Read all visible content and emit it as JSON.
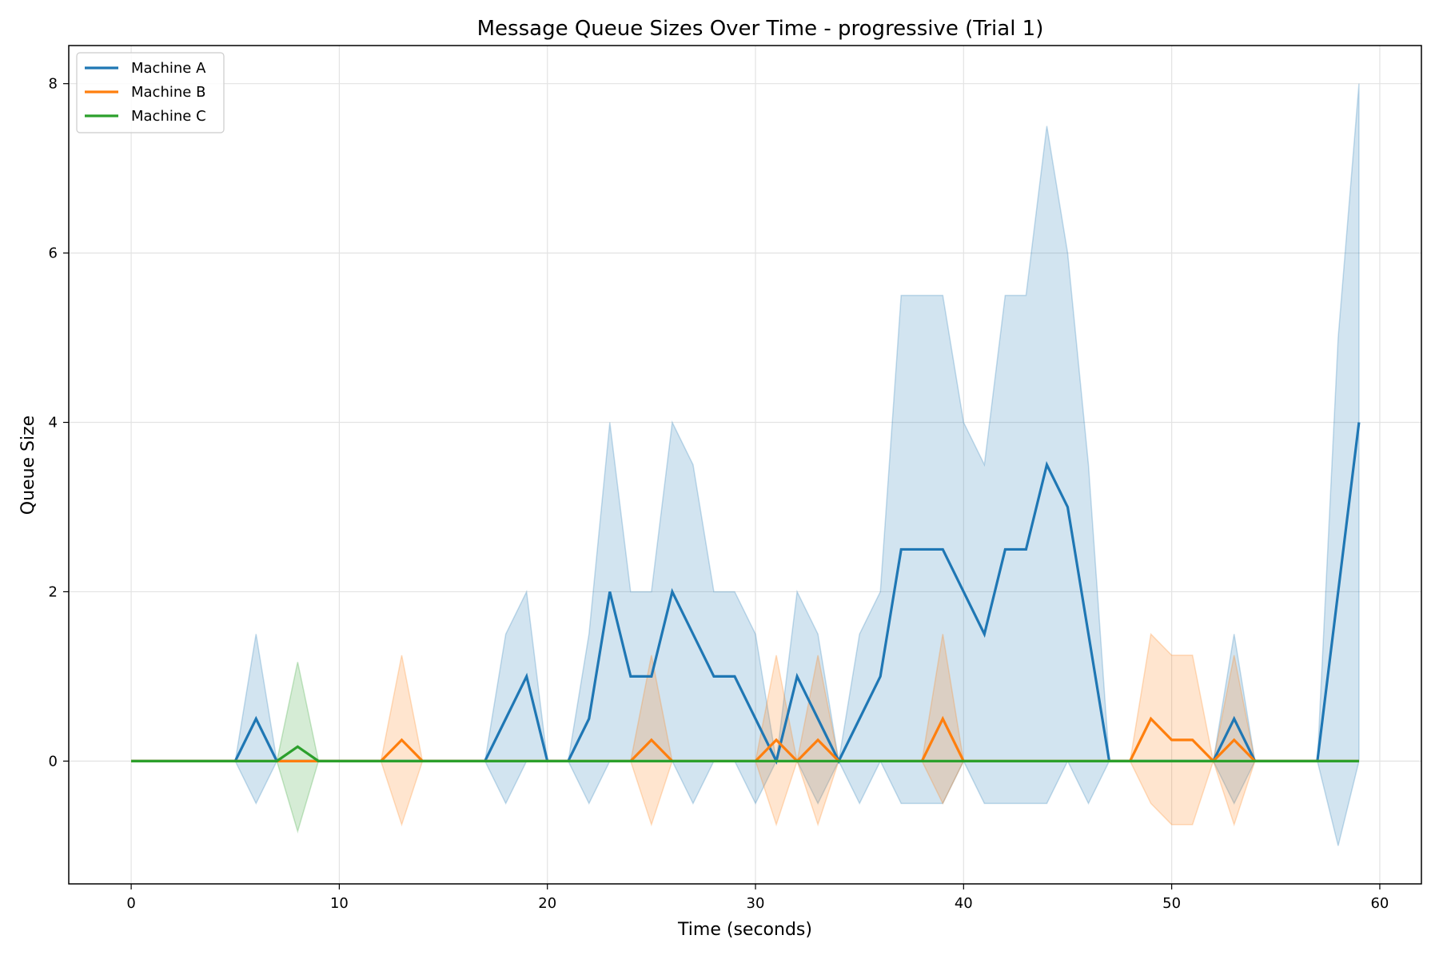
{
  "chart_data": {
    "type": "line",
    "title": "Message Queue Sizes Over Time - progressive (Trial 1)",
    "xlabel": "Time (seconds)",
    "ylabel": "Queue Size",
    "xlim": [
      -3,
      62
    ],
    "ylim": [
      -1.45,
      8.45
    ],
    "xticks": [
      0,
      10,
      20,
      30,
      40,
      50,
      60
    ],
    "yticks": [
      0,
      2,
      4,
      6,
      8
    ],
    "grid": true,
    "legend_position": "top-left",
    "x": [
      0,
      1,
      2,
      3,
      4,
      5,
      6,
      7,
      8,
      9,
      10,
      11,
      12,
      13,
      14,
      15,
      16,
      17,
      18,
      19,
      20,
      21,
      22,
      23,
      24,
      25,
      26,
      27,
      28,
      29,
      30,
      31,
      32,
      33,
      34,
      35,
      36,
      37,
      38,
      39,
      40,
      41,
      42,
      43,
      44,
      45,
      46,
      47,
      48,
      49,
      50,
      51,
      52,
      53,
      54,
      55,
      56,
      57,
      58,
      59
    ],
    "series": [
      {
        "name": "Machine A",
        "color": "#1f77b4",
        "values": [
          0,
          0,
          0,
          0,
          0,
          0,
          0.5,
          0,
          0,
          0,
          0,
          0,
          0,
          0,
          0,
          0,
          0,
          0,
          0.5,
          1,
          0,
          0,
          0.5,
          2,
          1,
          1,
          2,
          1.5,
          1,
          1,
          0.5,
          0,
          1,
          0.5,
          0,
          0.5,
          1,
          2.5,
          2.5,
          2.5,
          2,
          1.5,
          2.5,
          2.5,
          3.5,
          3,
          1.5,
          0,
          0,
          0,
          0,
          0,
          0,
          0.5,
          0,
          0,
          0,
          0,
          2,
          4
        ],
        "lower": [
          0,
          0,
          0,
          0,
          0,
          0,
          -0.5,
          0,
          0,
          0,
          0,
          0,
          0,
          0,
          0,
          0,
          0,
          0,
          -0.5,
          0,
          0,
          0,
          -0.5,
          0,
          0,
          0,
          0,
          -0.5,
          0,
          0,
          -0.5,
          0,
          0,
          -0.5,
          0,
          -0.5,
          0,
          -0.5,
          -0.5,
          -0.5,
          0,
          -0.5,
          -0.5,
          -0.5,
          -0.5,
          0,
          -0.5,
          0,
          0,
          0,
          0,
          0,
          0,
          -0.5,
          0,
          0,
          0,
          0,
          -1,
          0
        ],
        "upper": [
          0,
          0,
          0,
          0,
          0,
          0,
          1.5,
          0,
          0,
          0,
          0,
          0,
          0,
          0,
          0,
          0,
          0,
          0,
          1.5,
          2,
          0,
          0,
          1.5,
          4,
          2,
          2,
          4,
          3.5,
          2,
          2,
          1.5,
          0,
          2,
          1.5,
          0,
          1.5,
          2,
          5.5,
          5.5,
          5.5,
          4,
          3.5,
          5.5,
          5.5,
          7.5,
          6,
          3.5,
          0,
          0,
          0,
          0,
          0,
          0,
          1.5,
          0,
          0,
          0,
          0,
          5,
          8
        ]
      },
      {
        "name": "Machine B",
        "color": "#ff7f0e",
        "values": [
          0,
          0,
          0,
          0,
          0,
          0,
          0,
          0,
          0,
          0,
          0,
          0,
          0,
          0.25,
          0,
          0,
          0,
          0,
          0,
          0,
          0,
          0,
          0,
          0,
          0,
          0.25,
          0,
          0,
          0,
          0,
          0,
          0.25,
          0,
          0.25,
          0,
          0,
          0,
          0,
          0,
          0.5,
          0,
          0,
          0,
          0,
          0,
          0,
          0,
          0,
          0,
          0.5,
          0.25,
          0.25,
          0,
          0.25,
          0,
          0,
          0,
          0,
          0,
          0
        ],
        "lower": [
          0,
          0,
          0,
          0,
          0,
          0,
          0,
          0,
          0,
          0,
          0,
          0,
          0,
          -0.75,
          0,
          0,
          0,
          0,
          0,
          0,
          0,
          0,
          0,
          0,
          0,
          -0.75,
          0,
          0,
          0,
          0,
          0,
          -0.75,
          0,
          -0.75,
          0,
          0,
          0,
          0,
          0,
          -0.5,
          0,
          0,
          0,
          0,
          0,
          0,
          0,
          0,
          0,
          -0.5,
          -0.75,
          -0.75,
          0,
          -0.75,
          0,
          0,
          0,
          0,
          0,
          0
        ],
        "upper": [
          0,
          0,
          0,
          0,
          0,
          0,
          0,
          0,
          0,
          0,
          0,
          0,
          0,
          1.25,
          0,
          0,
          0,
          0,
          0,
          0,
          0,
          0,
          0,
          0,
          0,
          1.25,
          0,
          0,
          0,
          0,
          0,
          1.25,
          0,
          1.25,
          0,
          0,
          0,
          0,
          0,
          1.5,
          0,
          0,
          0,
          0,
          0,
          0,
          0,
          0,
          0,
          1.5,
          1.25,
          1.25,
          0,
          1.25,
          0,
          0,
          0,
          0,
          0,
          0
        ]
      },
      {
        "name": "Machine C",
        "color": "#2ca02c",
        "values": [
          0,
          0,
          0,
          0,
          0,
          0,
          0,
          0,
          0.17,
          0,
          0,
          0,
          0,
          0,
          0,
          0,
          0,
          0,
          0,
          0,
          0,
          0,
          0,
          0,
          0,
          0,
          0,
          0,
          0,
          0,
          0,
          0,
          0,
          0,
          0,
          0,
          0,
          0,
          0,
          0,
          0,
          0,
          0,
          0,
          0,
          0,
          0,
          0,
          0,
          0,
          0,
          0,
          0,
          0,
          0,
          0,
          0,
          0,
          0,
          0
        ],
        "lower": [
          0,
          0,
          0,
          0,
          0,
          0,
          0,
          0,
          -0.83,
          0,
          0,
          0,
          0,
          0,
          0,
          0,
          0,
          0,
          0,
          0,
          0,
          0,
          0,
          0,
          0,
          0,
          0,
          0,
          0,
          0,
          0,
          0,
          0,
          0,
          0,
          0,
          0,
          0,
          0,
          0,
          0,
          0,
          0,
          0,
          0,
          0,
          0,
          0,
          0,
          0,
          0,
          0,
          0,
          0,
          0,
          0,
          0,
          0,
          0,
          0
        ],
        "upper": [
          0,
          0,
          0,
          0,
          0,
          0,
          0,
          0,
          1.17,
          0,
          0,
          0,
          0,
          0,
          0,
          0,
          0,
          0,
          0,
          0,
          0,
          0,
          0,
          0,
          0,
          0,
          0,
          0,
          0,
          0,
          0,
          0,
          0,
          0,
          0,
          0,
          0,
          0,
          0,
          0,
          0,
          0,
          0,
          0,
          0,
          0,
          0,
          0,
          0,
          0,
          0,
          0,
          0,
          0,
          0,
          0,
          0,
          0,
          0,
          0
        ]
      }
    ]
  }
}
